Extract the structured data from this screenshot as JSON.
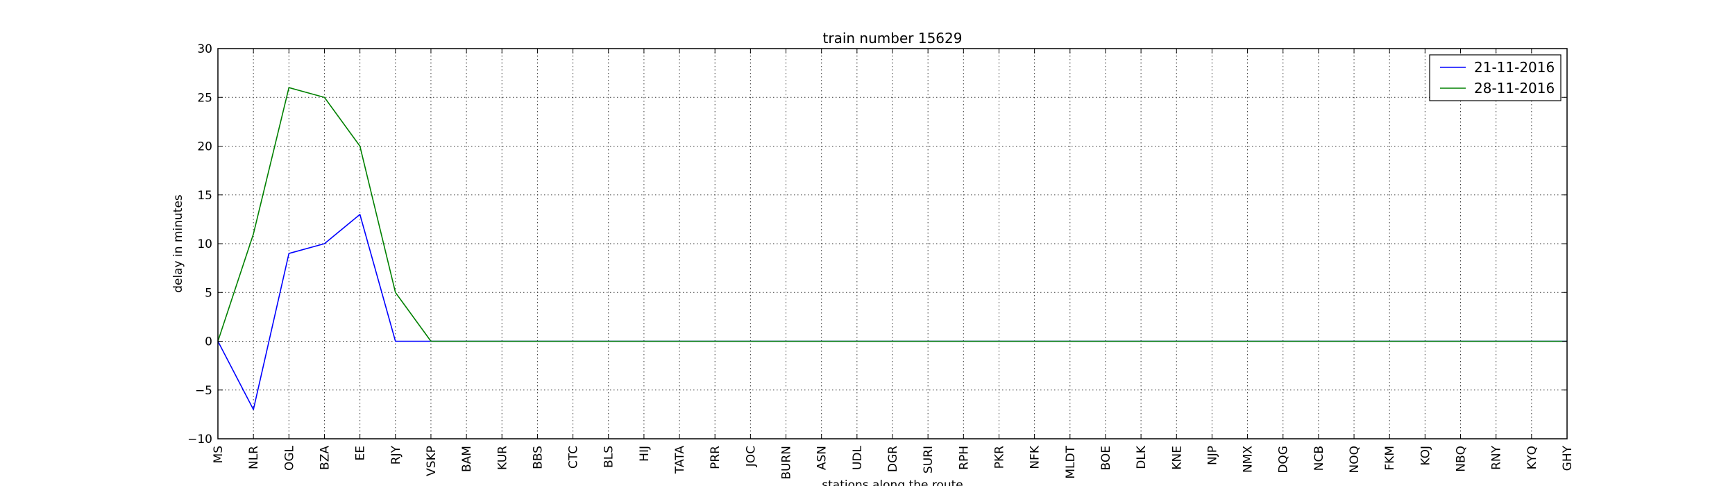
{
  "chart_data": {
    "type": "line",
    "title": "train number 15629",
    "xlabel": "stations along the route",
    "ylabel": "delay in minutes",
    "ylim": [
      -10,
      30
    ],
    "yticks": [
      -10,
      -5,
      0,
      5,
      10,
      15,
      20,
      25,
      30
    ],
    "ytick_labels": [
      "−10",
      "−5",
      "0",
      "5",
      "10",
      "15",
      "20",
      "25",
      "30"
    ],
    "grid": true,
    "legend_position": "top-right",
    "categories": [
      "MS",
      "NLR",
      "OGL",
      "BZA",
      "EE",
      "RJY",
      "VSKP",
      "BAM",
      "KUR",
      "BBS",
      "CTC",
      "BLS",
      "HIJ",
      "TATA",
      "PRR",
      "JOC",
      "BURN",
      "ASN",
      "UDL",
      "DGR",
      "SURI",
      "RPH",
      "PKR",
      "NFK",
      "MLDT",
      "BOE",
      "DLK",
      "KNE",
      "NJP",
      "NMX",
      "DQG",
      "NCB",
      "NOQ",
      "FKM",
      "KOJ",
      "NBQ",
      "RNY",
      "KYQ",
      "GHY"
    ],
    "series": [
      {
        "name": "21-11-2016",
        "color": "#0000ff",
        "values": [
          0,
          -7,
          9,
          10,
          13,
          0,
          0,
          0,
          0,
          0,
          0,
          0,
          0,
          0,
          0,
          0,
          0,
          0,
          0,
          0,
          0,
          0,
          0,
          0,
          0,
          0,
          0,
          0,
          0,
          0,
          0,
          0,
          0,
          0,
          0,
          0,
          0,
          0,
          0
        ]
      },
      {
        "name": "28-11-2016",
        "color": "#008000",
        "values": [
          0,
          11,
          26,
          25,
          20,
          5,
          0,
          0,
          0,
          0,
          0,
          0,
          0,
          0,
          0,
          0,
          0,
          0,
          0,
          0,
          0,
          0,
          0,
          0,
          0,
          0,
          0,
          0,
          0,
          0,
          0,
          0,
          0,
          0,
          0,
          0,
          0,
          0,
          0
        ]
      }
    ]
  }
}
